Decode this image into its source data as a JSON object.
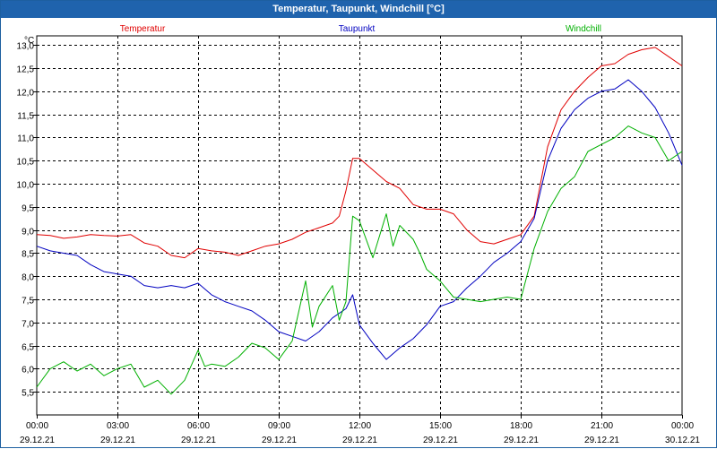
{
  "window": {
    "title": "Temperatur, Taupunkt, Windchill [°C]"
  },
  "chart_data": {
    "type": "line",
    "title": "Temperatur, Taupunkt, Windchill [°C]",
    "ylabel": "°C",
    "ylim": [
      5.0,
      13.2
    ],
    "grid": true,
    "legend_position": "top",
    "yticks": [
      "5,5",
      "6,0",
      "6,5",
      "7,0",
      "7,5",
      "8,0",
      "8,5",
      "9,0",
      "9,5",
      "10,0",
      "10,5",
      "11,0",
      "11,5",
      "12,0",
      "12,5",
      "13,0"
    ],
    "xticks": [
      {
        "time": "00:00",
        "date": "29.12.21"
      },
      {
        "time": "03:00",
        "date": "29.12.21"
      },
      {
        "time": "06:00",
        "date": "29.12.21"
      },
      {
        "time": "09:00",
        "date": "29.12.21"
      },
      {
        "time": "12:00",
        "date": "29.12.21"
      },
      {
        "time": "15:00",
        "date": "29.12.21"
      },
      {
        "time": "18:00",
        "date": "29.12.21"
      },
      {
        "time": "21:00",
        "date": "29.12.21"
      },
      {
        "time": "00:00",
        "date": "30.12.21"
      }
    ],
    "x_unit": "hours since 29.12.21 00:00",
    "series": [
      {
        "name": "Temperatur",
        "color": "#e00000",
        "x": [
          0,
          0.5,
          1,
          1.5,
          2,
          2.5,
          3,
          3.5,
          4,
          4.5,
          5,
          5.5,
          6,
          6.5,
          7,
          7.5,
          8,
          8.5,
          9,
          9.5,
          10,
          10.5,
          11,
          11.25,
          11.5,
          11.75,
          12,
          12.5,
          13,
          13.5,
          14,
          14.5,
          15,
          15.5,
          16,
          16.5,
          17,
          17.5,
          18,
          18.5,
          19,
          19.5,
          20,
          20.5,
          21,
          21.5,
          22,
          22.5,
          23,
          23.5,
          24
        ],
        "values": [
          8.9,
          8.88,
          8.82,
          8.85,
          8.9,
          8.88,
          8.87,
          8.9,
          8.72,
          8.65,
          8.45,
          8.4,
          8.6,
          8.55,
          8.52,
          8.45,
          8.55,
          8.65,
          8.7,
          8.8,
          8.95,
          9.05,
          9.15,
          9.3,
          9.85,
          10.55,
          10.55,
          10.3,
          10.05,
          9.9,
          9.55,
          9.45,
          9.45,
          9.35,
          9.0,
          8.75,
          8.7,
          8.8,
          8.9,
          9.3,
          10.8,
          11.6,
          12.0,
          12.3,
          12.55,
          12.6,
          12.8,
          12.9,
          12.95,
          12.75,
          12.55
        ]
      },
      {
        "name": "Taupunkt",
        "color": "#0000c0",
        "x": [
          0,
          0.5,
          1,
          1.5,
          2,
          2.5,
          3,
          3.5,
          4,
          4.5,
          5,
          5.5,
          6,
          6.5,
          7,
          7.5,
          8,
          8.5,
          9,
          9.5,
          10,
          10.5,
          11,
          11.5,
          11.75,
          12,
          12.5,
          13,
          13.5,
          14,
          14.5,
          15,
          15.5,
          16,
          16.5,
          17,
          17.5,
          18,
          18.5,
          19,
          19.5,
          20,
          20.5,
          21,
          21.5,
          22,
          22.5,
          23,
          23.5,
          24
        ],
        "values": [
          8.65,
          8.55,
          8.5,
          8.45,
          8.25,
          8.1,
          8.05,
          8.0,
          7.8,
          7.75,
          7.8,
          7.75,
          7.85,
          7.6,
          7.45,
          7.35,
          7.25,
          7.05,
          6.8,
          6.7,
          6.6,
          6.8,
          7.1,
          7.3,
          7.6,
          6.95,
          6.55,
          6.2,
          6.45,
          6.65,
          6.95,
          7.35,
          7.45,
          7.75,
          8.0,
          8.3,
          8.5,
          8.75,
          9.25,
          10.5,
          11.2,
          11.6,
          11.85,
          12.0,
          12.05,
          12.25,
          12.0,
          11.65,
          11.1,
          10.4
        ]
      },
      {
        "name": "Windchill",
        "color": "#00b000",
        "x": [
          0,
          0.5,
          1,
          1.5,
          2,
          2.5,
          3,
          3.5,
          4,
          4.5,
          5,
          5.5,
          6,
          6.25,
          6.5,
          7,
          7.5,
          8,
          8.5,
          9,
          9.5,
          10,
          10.25,
          10.5,
          11,
          11.25,
          11.5,
          11.75,
          12,
          12.5,
          13,
          13.25,
          13.5,
          14,
          14.25,
          14.5,
          15,
          15.5,
          16,
          16.5,
          17,
          17.5,
          18,
          18.5,
          19,
          19.5,
          20,
          20.5,
          21,
          21.5,
          22,
          22.5,
          23,
          23.5,
          24
        ],
        "values": [
          5.6,
          6.0,
          6.15,
          5.95,
          6.1,
          5.85,
          6.0,
          6.1,
          5.6,
          5.75,
          5.45,
          5.75,
          6.4,
          6.05,
          6.1,
          6.05,
          6.25,
          6.55,
          6.45,
          6.2,
          6.6,
          7.9,
          6.9,
          7.35,
          7.8,
          7.05,
          7.45,
          9.3,
          9.2,
          8.4,
          9.35,
          8.65,
          9.1,
          8.8,
          8.5,
          8.15,
          7.9,
          7.55,
          7.5,
          7.45,
          7.5,
          7.55,
          7.5,
          8.6,
          9.4,
          9.9,
          10.15,
          10.7,
          10.85,
          11.0,
          11.25,
          11.1,
          11.0,
          10.5,
          10.7
        ]
      }
    ]
  }
}
